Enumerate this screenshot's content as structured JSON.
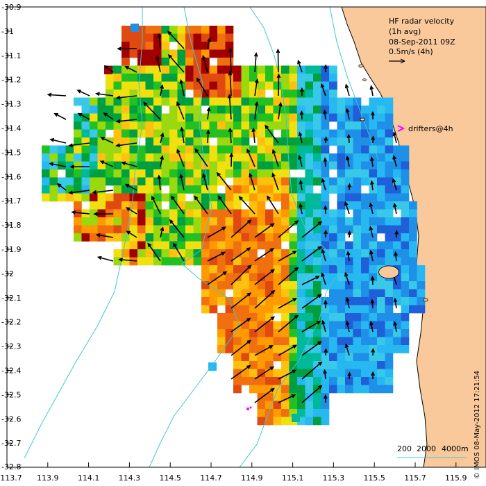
{
  "legend": {
    "title": "HF radar velocity",
    "avg": "(1h avg)",
    "datetime": "08-Sep-2011 09Z",
    "scale_label": "0.5m/s (4h)",
    "drifters_label": "drifters@4h",
    "drifters_color": "#ff00ff"
  },
  "axes": {
    "x_ticks": [
      "113.7",
      "113.9",
      "114.1",
      "114.3",
      "114.5",
      "114.7",
      "114.9",
      "115.1",
      "115.3",
      "115.5",
      "115.7",
      "115.9"
    ],
    "y_ticks": [
      "-30.9",
      "-31",
      "-31.1",
      "-31.2",
      "-31.3",
      "-31.4",
      "-31.5",
      "-31.6",
      "-31.7",
      "-31.8",
      "-31.9",
      "-32",
      "-32.1",
      "-32.2",
      "-32.3",
      "-32.4",
      "-32.5",
      "-32.6",
      "-32.7",
      "-32.8"
    ]
  },
  "bathymetry_legend": {
    "labels": [
      "200",
      "2000",
      "4000m"
    ],
    "color": "#3ec8d0"
  },
  "credit": "© IMOS 08-May-2012 17:21:54",
  "colors": {
    "land": "#f9c89b",
    "coast": "#000000",
    "bathy": "#3ec8d0",
    "scale": [
      "#1030b0",
      "#1f5fd8",
      "#1e90e8",
      "#27b8f2",
      "#38c9e8",
      "#00b89a",
      "#00a040",
      "#22c020",
      "#9ad810",
      "#f0e010",
      "#ffc010",
      "#ff9a00",
      "#f07010",
      "#e04a10",
      "#a00000"
    ]
  }
}
